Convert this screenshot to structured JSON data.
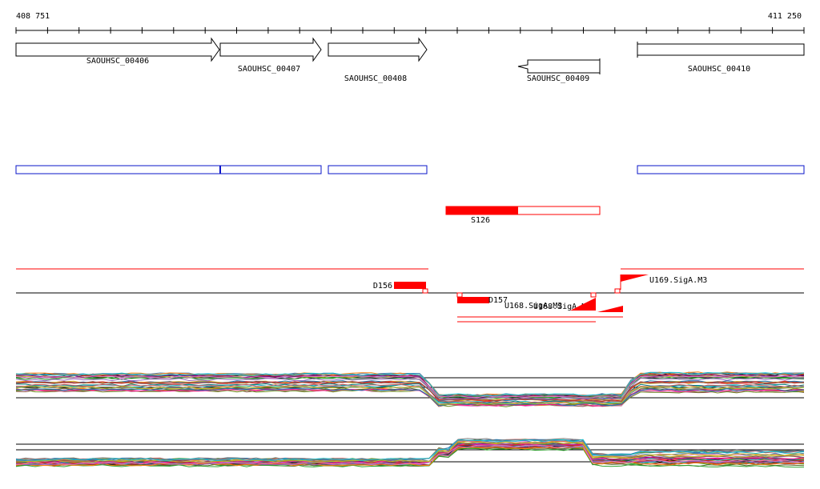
{
  "ruler": {
    "start_label": "408 751",
    "end_label": "411 250"
  },
  "colors": {
    "gene_outline": "#000000",
    "gene_fill": "#ffffff",
    "operon_outline": "#0a14c8",
    "segment_red": "#ff0000",
    "baseline": "#000000"
  },
  "genes": [
    {
      "id": "SAOUHSC_00406",
      "label": "SAOUHSC_00406",
      "strand": "+"
    },
    {
      "id": "SAOUHSC_00407",
      "label": "SAOUHSC_00407",
      "strand": "+"
    },
    {
      "id": "SAOUHSC_00408",
      "label": "SAOUHSC_00408",
      "strand": "+"
    },
    {
      "id": "SAOUHSC_00409",
      "label": "SAOUHSC_00409",
      "strand": "-"
    },
    {
      "id": "SAOUHSC_00410",
      "label": "SAOUHSC_00410",
      "strand": "+"
    }
  ],
  "transcription_units": [
    {
      "id": "S126",
      "label": "S126"
    }
  ],
  "features": [
    {
      "id": "D156",
      "label": "D156"
    },
    {
      "id": "D157",
      "label": "D157"
    },
    {
      "id": "U168",
      "label": "U168.SigA.M3"
    },
    {
      "id": "U168b",
      "label": "U168.SigA.M3"
    },
    {
      "id": "U169",
      "label": "U169.SigA.M3"
    }
  ],
  "expression_tracks": [
    {
      "id": "track-1",
      "description": "upper expression profiles",
      "series_count": 30
    },
    {
      "id": "track-2",
      "description": "lower expression profiles",
      "series_count": 30
    }
  ]
}
